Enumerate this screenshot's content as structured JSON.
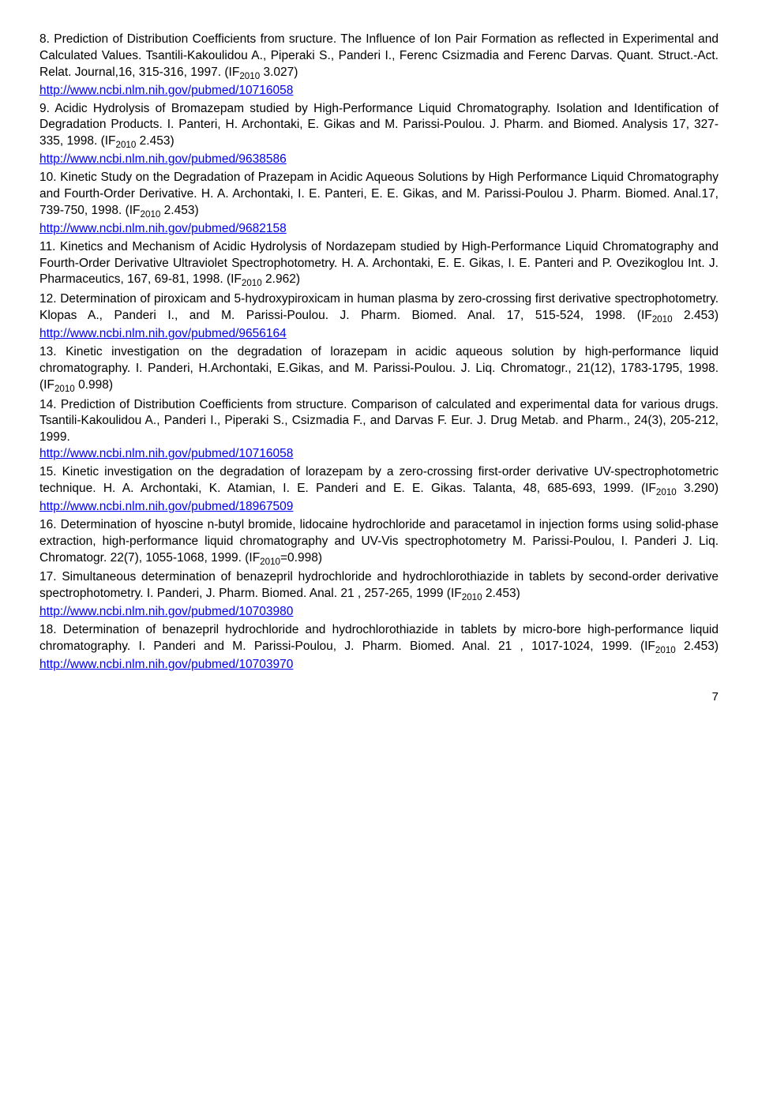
{
  "entries": [
    {
      "num": "8",
      "text": "Prediction of Distribution Coefficients from sructure. The Influence of Ion Pair Formation as reflected in Experimental and Calculated Values. Tsantili-Kakoulidou A., Piperaki S., Panderi I., Ferenc Csizmadia and Ferenc Darvas. Quant. Struct.-Act. Relat. Journal,16, 315-316, 1997. (IF",
      "if_sub": "2010",
      "if_val": " 3.027)",
      "link": "http://www.ncbi.nlm.nih.gov/pubmed/10716058"
    },
    {
      "num": "9",
      "text": "Acidic Hydrolysis of Bromazepam studied by High-Performance Liquid Chromatography. Isolation and Identification of Degradation Products. I. Panteri, H. Archontaki, E. Gikas and M. Parissi-Poulou. J. Pharm. and Biomed. Analysis 17, 327-335, 1998. (IF",
      "if_sub": "2010",
      "if_val": " 2.453)",
      "link": " http://www.ncbi.nlm.nih.gov/pubmed/9638586"
    },
    {
      "num": "10",
      "text": "Kinetic Study on the Degradation of Prazepam in Acidic Aqueous Solutions by High Performance Liquid Chromatography and Fourth-Order Derivative. H. A. Archontaki, I. E. Panteri, E. E. Gikas, and M. Parissi-Poulou J. Pharm. Biomed. Anal.17, 739-750, 1998. (IF",
      "if_sub": "2010",
      "if_val": " 2.453)",
      "link": "http://www.ncbi.nlm.nih.gov/pubmed/9682158"
    },
    {
      "num": "11",
      "text": "Kinetics and Mechanism of Acidic Hydrolysis of Nordazepam studied by High-Performance Liquid Chromatography and Fourth-Order Derivative Ultraviolet Spectrophotometry. H. A. Archontaki, E. E. Gikas, I. E. Panteri and P. Ovezikoglou Int. J. Pharmaceutics, 167, 69-81, 1998. (IF",
      "if_sub": "2010",
      "if_val": " 2.962)",
      "link": null
    },
    {
      "num": "12",
      "text": "Determination of piroxicam and 5-hydroxypiroxicam in human plasma by zero-crossing first derivative spectrophotometry. Klopas A., Panderi I., and M. Parissi-Poulou. J. Pharm. Biomed. Anal. 17, 515-524, 1998. (IF",
      "if_sub": "2010",
      "if_val": " 2.453) ",
      "link": "http://www.ncbi.nlm.nih.gov/pubmed/9656164"
    },
    {
      "num": "13",
      "text": "Kinetic investigation on the degradation of lorazepam in acidic aqueous solution by high-performance liquid chromatography. I. Panderi, H.Archontaki, E.Gikas, and M. Parissi-Poulou. J. Liq. Chromatogr., 21(12), 1783-1795, 1998. (IF",
      "if_sub": "2010",
      "if_val": " 0.998)",
      "link": null
    },
    {
      "num": "14",
      "text": "Prediction of Distribution Coefficients from structure. Comparison of calculated and experimental data for various drugs. Tsantili-Kakoulidou A., Panderi I., Piperaki S., Csizmadia F., and Darvas F. Eur. J. Drug Metab. and Pharm., 24(3), 205-212, 1999.",
      "if_sub": null,
      "if_val": null,
      "link": " http://www.ncbi.nlm.nih.gov/pubmed/10716058"
    },
    {
      "num": "15",
      "text": "Kinetic investigation on the degradation of lorazepam by a zero-crossing first-order derivative UV-spectrophotometric technique. H. A. Archontaki, K. Atamian, I. E. Panderi and E. E. Gikas. Talanta, 48, 685-693, 1999. (IF",
      "if_sub": "2010",
      "if_val": " 3.290) ",
      "link": "http://www.ncbi.nlm.nih.gov/pubmed/18967509"
    },
    {
      "num": "16",
      "text": "Determination of hyoscine n-butyl bromide, lidocaine hydrochloride and paracetamol in injection forms using solid-phase extraction, high-performance liquid chromatography and UV-Vis spectrophotometry M. Parissi-Poulou, I. Panderi J. Liq. Chromatogr. 22(7), 1055-1068, 1999. (IF",
      "if_sub": "2010",
      "if_val": "=0.998)",
      "link": null
    },
    {
      "num": "17",
      "text": "Simultaneous determination of benazepril hydrochloride and hydrochlorothiazide in tablets by second-order derivative spectrophotometry. I. Panderi, J. Pharm. Biomed. Anal. 21 , 257-265, 1999 (IF",
      "if_sub": "2010",
      "if_val": " 2.453)",
      "link": "http://www.ncbi.nlm.nih.gov/pubmed/10703980"
    },
    {
      "num": "18",
      "text": "Determination of benazepril hydrochloride and hydrochlorothiazide in tablets by micro-bore high-performance liquid chromatography.  I. Panderi and M. Parissi-Poulou, J. Pharm. Biomed. Anal. 21 , 1017-1024, 1999. (IF",
      "if_sub": "2010",
      "if_val": " 2.453) ",
      "link": "http://www.ncbi.nlm.nih.gov/pubmed/10703970"
    }
  ],
  "page_number": "7"
}
